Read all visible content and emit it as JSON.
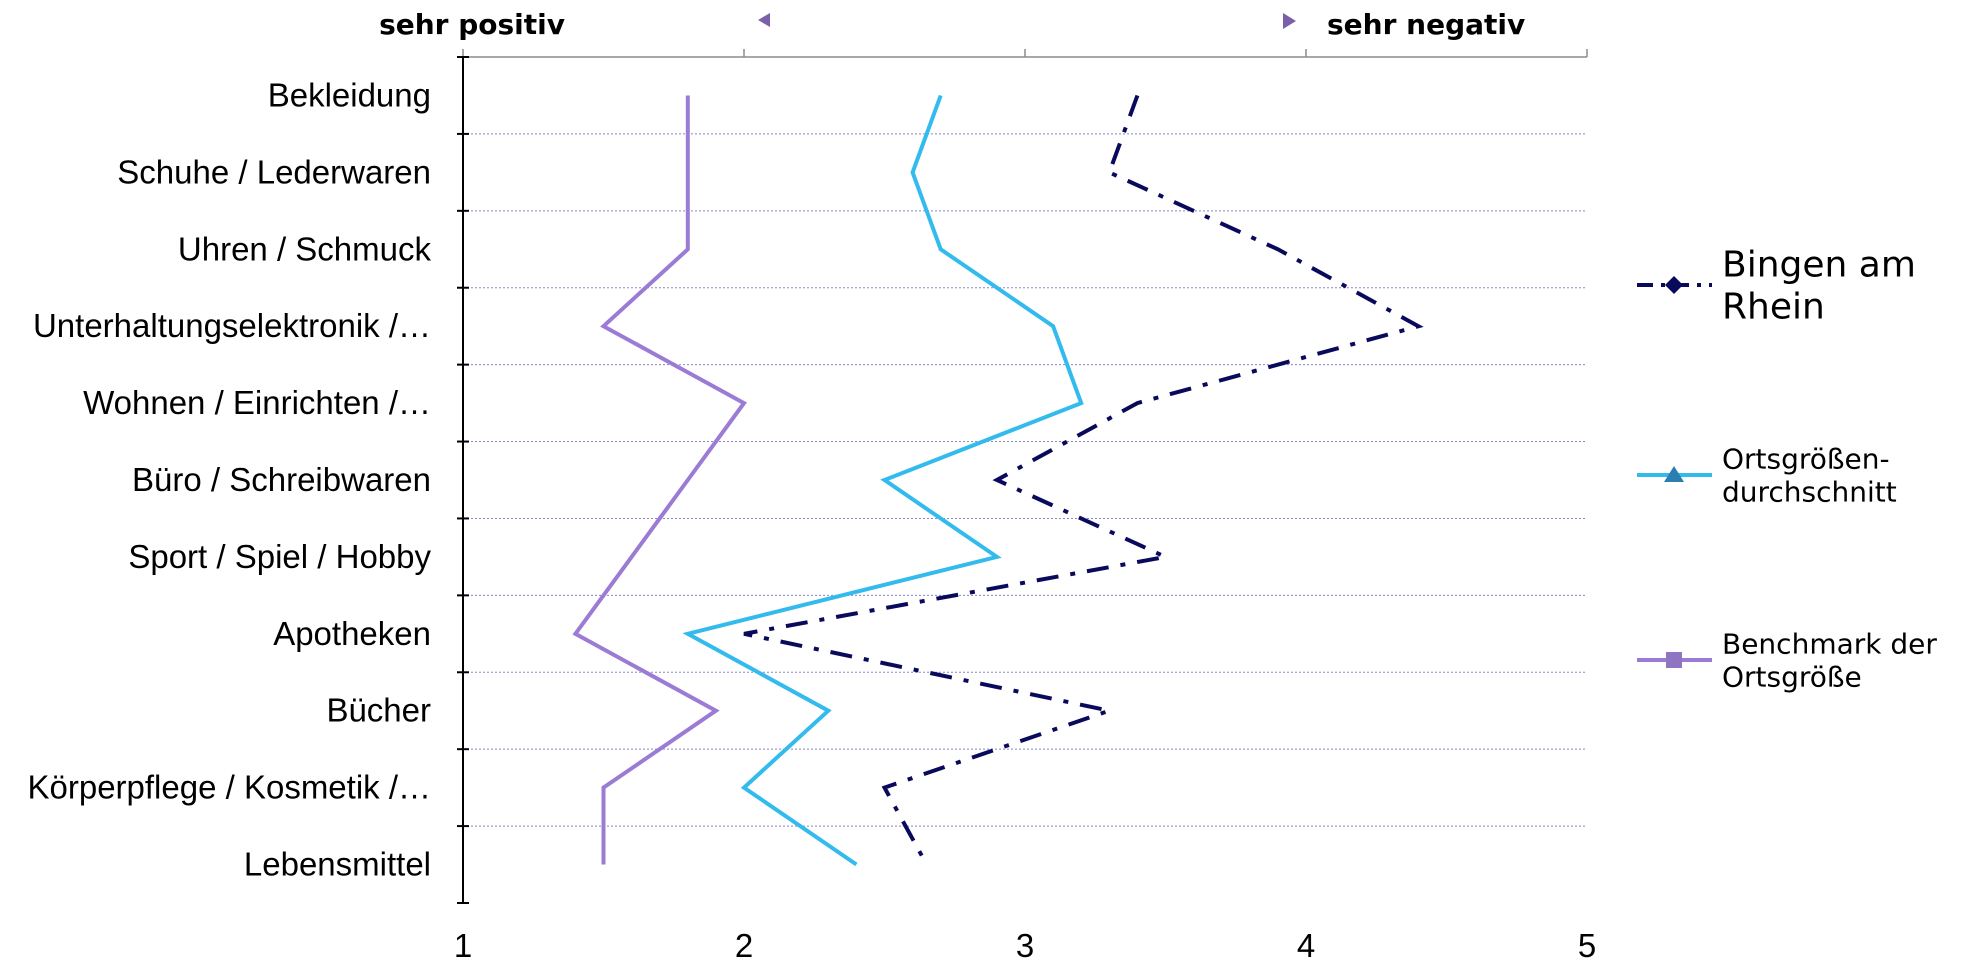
{
  "chart_data": {
    "type": "line",
    "orientation": "horizontal",
    "categories": [
      "Bekleidung",
      "Schuhe / Lederwaren",
      "Uhren / Schmuck",
      "Unterhaltungselektronik /…",
      "Wohnen / Einrichten /…",
      "Büro / Schreibwaren",
      "Sport / Spiel / Hobby",
      "Apotheken",
      "Bücher",
      "Körperpflege / Kosmetik /…",
      "Lebensmittel"
    ],
    "series": [
      {
        "name": "Bingen am Rhein",
        "legend_lines": [
          "Bingen am",
          "Rhein"
        ],
        "color": "#0a0a5c",
        "dash": "dash-dot",
        "marker": "diamond",
        "values": [
          3.4,
          3.3,
          3.9,
          4.4,
          3.4,
          2.9,
          3.5,
          2.0,
          3.3,
          2.5,
          2.65
        ]
      },
      {
        "name": "Ortsgrößen-durchschnitt",
        "legend_lines": [
          "Ortsgrößen-",
          "durchschnitt"
        ],
        "color": "#33bbee",
        "dash": "solid",
        "marker": "triangle",
        "values": [
          2.7,
          2.6,
          2.7,
          3.1,
          3.2,
          2.5,
          2.9,
          1.8,
          2.3,
          2.0,
          2.4
        ]
      },
      {
        "name": "Benchmark der Ortsgröße",
        "legend_lines": [
          "Benchmark der",
          "Ortsgröße"
        ],
        "color": "#9b7bd4",
        "dash": "solid",
        "marker": "square",
        "values": [
          1.8,
          1.8,
          1.8,
          1.5,
          2.0,
          1.8,
          1.6,
          1.4,
          1.9,
          1.5,
          1.5
        ]
      }
    ],
    "xlim": [
      1,
      5
    ],
    "xticks": [
      "1",
      "2",
      "3",
      "4",
      "5"
    ],
    "scale_labels": {
      "left": "sehr positiv",
      "right": "sehr negativ"
    },
    "grid": "horizontal dotted",
    "legend": "right"
  }
}
